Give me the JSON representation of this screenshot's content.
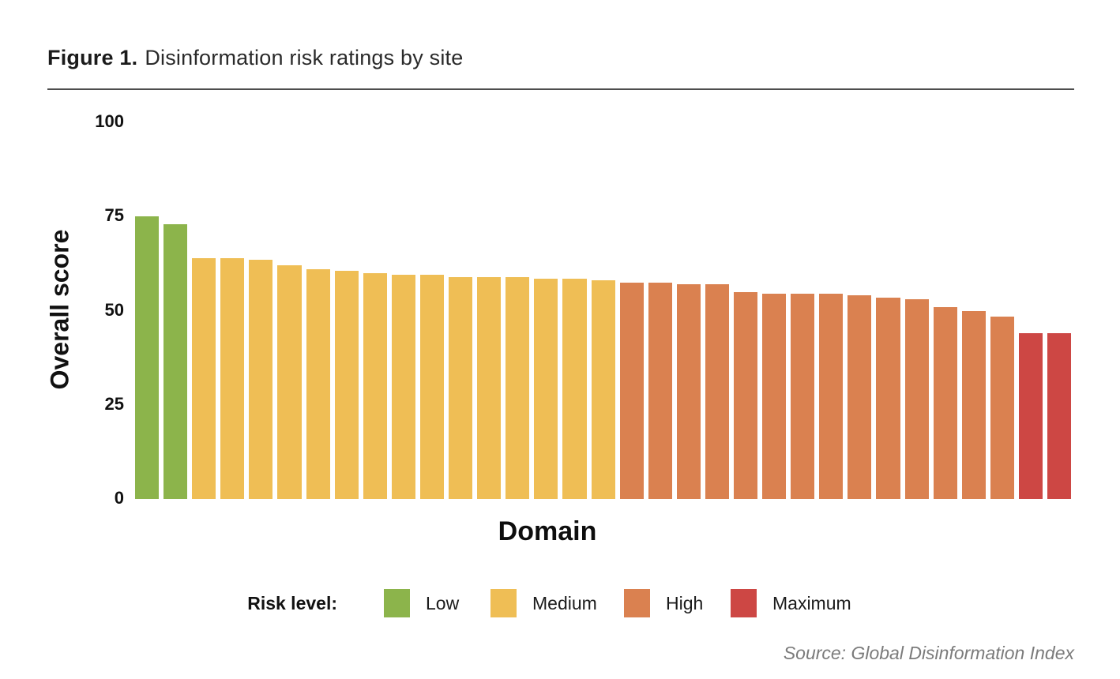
{
  "figure": {
    "title_prefix": "Figure 1.",
    "title_rest": "Disinformation risk ratings by site",
    "source": "Source: Global Disinformation Index"
  },
  "legend": {
    "title": "Risk level:",
    "entries": [
      {
        "label": "Low",
        "color": "#8CB44B"
      },
      {
        "label": "Medium",
        "color": "#EFBE55"
      },
      {
        "label": "High",
        "color": "#DA8150"
      },
      {
        "label": "Maximum",
        "color": "#CD4744"
      }
    ]
  },
  "chart_data": {
    "type": "bar",
    "title": "Figure 1. Disinformation risk ratings by site",
    "xlabel": "Domain",
    "ylabel": "Overall score",
    "ylim": [
      0,
      100
    ],
    "yticks": [
      0,
      25,
      50,
      75,
      100
    ],
    "grid": false,
    "legend_position": "bottom",
    "x_tick_labels": "none (individual sites unlabeled)",
    "risk_colors": {
      "Low": "#8CB44B",
      "Medium": "#EFBE55",
      "High": "#DA8150",
      "Maximum": "#CD4744"
    },
    "bars": [
      {
        "value": 75,
        "risk": "Low"
      },
      {
        "value": 73,
        "risk": "Low"
      },
      {
        "value": 64,
        "risk": "Medium"
      },
      {
        "value": 64,
        "risk": "Medium"
      },
      {
        "value": 63.5,
        "risk": "Medium"
      },
      {
        "value": 62,
        "risk": "Medium"
      },
      {
        "value": 61,
        "risk": "Medium"
      },
      {
        "value": 60.5,
        "risk": "Medium"
      },
      {
        "value": 60,
        "risk": "Medium"
      },
      {
        "value": 59.5,
        "risk": "Medium"
      },
      {
        "value": 59.5,
        "risk": "Medium"
      },
      {
        "value": 59,
        "risk": "Medium"
      },
      {
        "value": 59,
        "risk": "Medium"
      },
      {
        "value": 59,
        "risk": "Medium"
      },
      {
        "value": 58.5,
        "risk": "Medium"
      },
      {
        "value": 58.5,
        "risk": "Medium"
      },
      {
        "value": 58,
        "risk": "Medium"
      },
      {
        "value": 57.5,
        "risk": "High"
      },
      {
        "value": 57.5,
        "risk": "High"
      },
      {
        "value": 57,
        "risk": "High"
      },
      {
        "value": 57,
        "risk": "High"
      },
      {
        "value": 55,
        "risk": "High"
      },
      {
        "value": 54.5,
        "risk": "High"
      },
      {
        "value": 54.5,
        "risk": "High"
      },
      {
        "value": 54.5,
        "risk": "High"
      },
      {
        "value": 54,
        "risk": "High"
      },
      {
        "value": 53.5,
        "risk": "High"
      },
      {
        "value": 53,
        "risk": "High"
      },
      {
        "value": 51,
        "risk": "High"
      },
      {
        "value": 50,
        "risk": "High"
      },
      {
        "value": 48.5,
        "risk": "High"
      },
      {
        "value": 44,
        "risk": "Maximum"
      },
      {
        "value": 44,
        "risk": "Maximum"
      }
    ]
  }
}
